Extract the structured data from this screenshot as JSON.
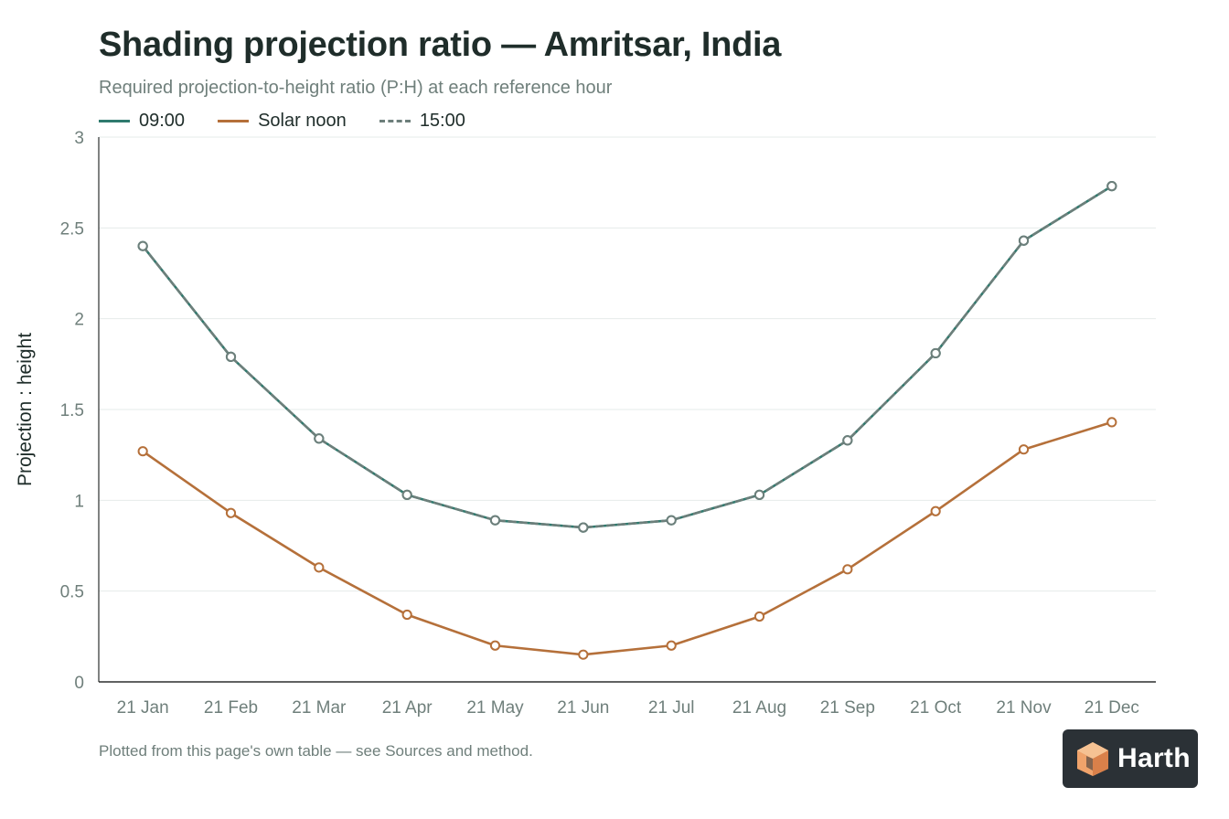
{
  "header": {
    "title": "Shading projection ratio — Amritsar, India",
    "subtitle": "Required projection-to-height ratio (P:H) at each reference hour"
  },
  "footnote": "Plotted from this page's own table — see Sources and method.",
  "logo": {
    "text": "Harth",
    "icon": "cube-logo-icon",
    "background": "#2b3136",
    "accent": "#f0a36b"
  },
  "chart_data": {
    "type": "line",
    "title": "Shading projection ratio — Amritsar, India",
    "subtitle": "Required projection-to-height ratio (P:H) at each reference hour",
    "xlabel": "",
    "ylabel": "Projection : height",
    "ylim": [
      0,
      3
    ],
    "yticks": [
      "0",
      "0.5",
      "1",
      "1.5",
      "2",
      "2.5",
      "3"
    ],
    "grid": true,
    "legend_position": "top-left",
    "categories": [
      "21 Jan",
      "21 Feb",
      "21 Mar",
      "21 Apr",
      "21 May",
      "21 Jun",
      "21 Jul",
      "21 Aug",
      "21 Sep",
      "21 Oct",
      "21 Nov",
      "21 Dec"
    ],
    "series": [
      {
        "name": "09:00",
        "color": "#2f7a6e",
        "dash": "solid",
        "values": [
          2.4,
          1.79,
          1.34,
          1.03,
          0.89,
          0.85,
          0.89,
          1.03,
          1.33,
          1.81,
          2.43,
          2.73
        ]
      },
      {
        "name": "Solar noon",
        "color": "#b5703a",
        "dash": "solid",
        "values": [
          1.27,
          0.93,
          0.63,
          0.37,
          0.2,
          0.15,
          0.2,
          0.36,
          0.62,
          0.94,
          1.28,
          1.43
        ]
      },
      {
        "name": "15:00",
        "color": "#6d7f7b",
        "dash": "dashed",
        "values": [
          2.4,
          1.79,
          1.34,
          1.03,
          0.89,
          0.85,
          0.89,
          1.03,
          1.33,
          1.81,
          2.43,
          2.73
        ]
      }
    ]
  }
}
